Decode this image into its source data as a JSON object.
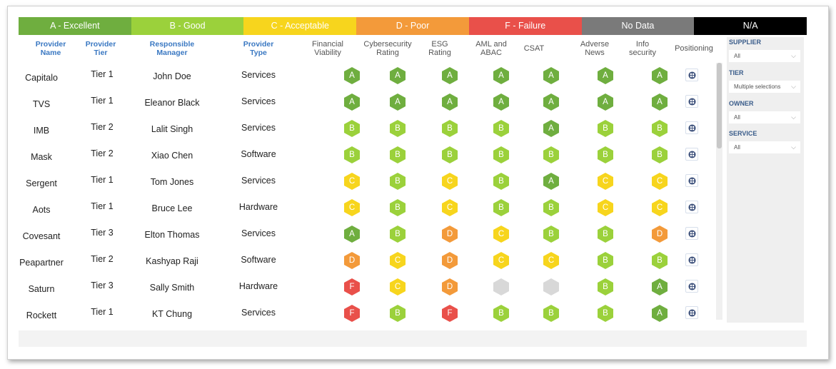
{
  "legend": [
    {
      "label": "A - Excellent",
      "color": "#6fae3f"
    },
    {
      "label": "B - Good",
      "color": "#9bd13b"
    },
    {
      "label": "C - Acceptable",
      "color": "#f7d51d"
    },
    {
      "label": "D - Poor",
      "color": "#f39a3a"
    },
    {
      "label": "F - Failure",
      "color": "#e9504a"
    },
    {
      "label": "No Data",
      "color": "#7a7a7a"
    },
    {
      "label": "N/A",
      "color": "#000000"
    }
  ],
  "columns": {
    "provider_name": "Provider Name",
    "provider_tier": "Provider Tier",
    "responsible_manager": "Responsible Manager",
    "provider_type": "Provider Type",
    "financial_viability": "Financial Viability",
    "cybersecurity_rating": "Cybersecurity Rating",
    "esg_rating": "ESG Rating",
    "aml_abac": "AML and ABAC",
    "csat": "CSAT",
    "adverse_news": "Adverse News",
    "info_security": "Info security",
    "positioning": "Positioning"
  },
  "rows": [
    {
      "name": "Capitalo",
      "tier": "Tier 1",
      "manager": "John Doe",
      "type": "Services",
      "ratings": [
        "A",
        "A",
        "A",
        "A",
        "A",
        "A",
        "A"
      ]
    },
    {
      "name": "TVS",
      "tier": "Tier 1",
      "manager": "Eleanor Black",
      "type": "Services",
      "ratings": [
        "A",
        "A",
        "A",
        "A",
        "A",
        "A",
        "A"
      ]
    },
    {
      "name": "IMB",
      "tier": "Tier 2",
      "manager": "Lalit Singh",
      "type": "Services",
      "ratings": [
        "B",
        "B",
        "B",
        "B",
        "A",
        "B",
        "B"
      ]
    },
    {
      "name": "Mask",
      "tier": "Tier 2",
      "manager": "Xiao Chen",
      "type": "Software",
      "ratings": [
        "B",
        "B",
        "B",
        "B",
        "B",
        "B",
        "B"
      ]
    },
    {
      "name": "Sergent",
      "tier": "Tier 1",
      "manager": "Tom Jones",
      "type": "Services",
      "ratings": [
        "C",
        "B",
        "C",
        "B",
        "A",
        "C",
        "C"
      ]
    },
    {
      "name": "Aots",
      "tier": "Tier 1",
      "manager": "Bruce Lee",
      "type": "Hardware",
      "ratings": [
        "C",
        "B",
        "C",
        "B",
        "B",
        "C",
        "C"
      ]
    },
    {
      "name": "Covesant",
      "tier": "Tier 3",
      "manager": "Elton Thomas",
      "type": "Services",
      "ratings": [
        "A",
        "B",
        "D",
        "C",
        "B",
        "B",
        "D"
      ]
    },
    {
      "name": "Peapartner",
      "tier": "Tier 2",
      "manager": "Kashyap Raji",
      "type": "Software",
      "ratings": [
        "D",
        "C",
        "D",
        "C",
        "C",
        "B",
        "B"
      ]
    },
    {
      "name": "Saturn",
      "tier": "Tier 3",
      "manager": "Sally Smith",
      "type": "Hardware",
      "ratings": [
        "F",
        "C",
        "D",
        "",
        "",
        "B",
        "A"
      ]
    },
    {
      "name": "Rockett",
      "tier": "Tier 1",
      "manager": "KT Chung",
      "type": "Services",
      "ratings": [
        "F",
        "B",
        "F",
        "B",
        "B",
        "B",
        "A"
      ]
    }
  ],
  "rating_colors": {
    "A": "#6fae3f",
    "B": "#9bd13b",
    "C": "#f7d51d",
    "D": "#f39a3a",
    "F": "#e9504a",
    "": "#d8d8d8"
  },
  "sidebar": {
    "supplier": {
      "label": "SUPPLIER",
      "value": "All"
    },
    "tier": {
      "label": "TIER",
      "value": "Multiple selections"
    },
    "owner": {
      "label": "OWNER",
      "value": "All"
    },
    "service": {
      "label": "SERVICE",
      "value": "All"
    }
  },
  "icons": {
    "positioning": "grid-icon",
    "dropdown": "chevron-down-icon"
  }
}
